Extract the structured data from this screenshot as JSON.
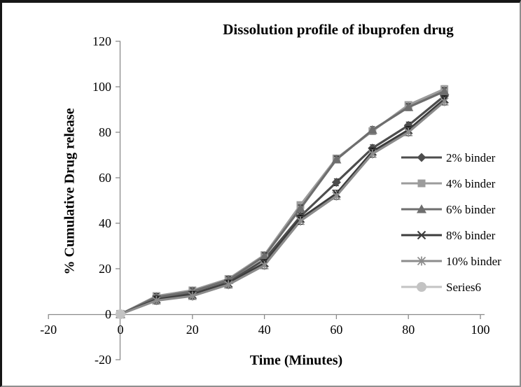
{
  "chart_data": {
    "type": "line",
    "title": "Dissolution profile of ibuprofen drug",
    "xlabel": "Time (Minutes)",
    "ylabel": "% Cumulative Drug release",
    "xlim": [
      -20,
      100
    ],
    "ylim": [
      -20,
      120
    ],
    "xticks": [
      -20,
      0,
      20,
      40,
      60,
      80,
      100
    ],
    "yticks": [
      -20,
      0,
      20,
      40,
      60,
      80,
      100,
      120
    ],
    "grid": false,
    "legend_position": "right",
    "axis_color": "#8a8a8a",
    "tick_label_color": "#000000",
    "error_bar": 1.5,
    "x": [
      0,
      10,
      20,
      30,
      40,
      50,
      60,
      70,
      80,
      90
    ],
    "series": [
      {
        "name": "2% binder",
        "marker": "diamond",
        "color": "#4d4d4d",
        "values": [
          0,
          7,
          9,
          14,
          24,
          43,
          58,
          73,
          83,
          96
        ]
      },
      {
        "name": "4% binder",
        "marker": "square",
        "color": "#9c9c9c",
        "values": [
          0,
          8,
          10.5,
          15.5,
          26,
          48,
          68.5,
          80.5,
          92,
          99
        ]
      },
      {
        "name": "6% binder",
        "marker": "triangle",
        "color": "#6e6e6e",
        "values": [
          0,
          7.5,
          10,
          15,
          25.5,
          46.5,
          68,
          81,
          91,
          98
        ]
      },
      {
        "name": "8% binder",
        "marker": "x",
        "color": "#3c3c3c",
        "values": [
          0,
          6.5,
          8.5,
          13.5,
          22.5,
          42,
          53,
          71.5,
          81,
          94.5
        ]
      },
      {
        "name": "10% binder",
        "marker": "star",
        "color": "#8c8c8c",
        "values": [
          0,
          6,
          8,
          13,
          21.5,
          41,
          52,
          70.5,
          80,
          93.5
        ]
      },
      {
        "name": "Series6",
        "marker": "circle",
        "color": "#c3c3c3",
        "values": [
          0,
          null,
          null,
          null,
          null,
          null,
          null,
          null,
          null,
          null
        ]
      }
    ]
  }
}
